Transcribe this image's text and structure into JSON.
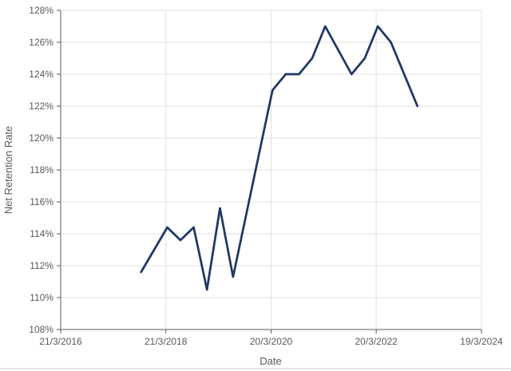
{
  "chart_data": {
    "type": "line",
    "title": "",
    "xlabel": "Date",
    "ylabel": "Net Retention Rate",
    "ylim": [
      108,
      128
    ],
    "xlim_years": [
      2016.221,
      2024.216
    ],
    "grid": true,
    "legend": "none",
    "y_ticks": [
      {
        "value": 108,
        "label": "108%"
      },
      {
        "value": 110,
        "label": "110%"
      },
      {
        "value": 112,
        "label": "112%"
      },
      {
        "value": 114,
        "label": "114%"
      },
      {
        "value": 116,
        "label": "116%"
      },
      {
        "value": 118,
        "label": "118%"
      },
      {
        "value": 120,
        "label": "120%"
      },
      {
        "value": 122,
        "label": "122%"
      },
      {
        "value": 124,
        "label": "124%"
      },
      {
        "value": 126,
        "label": "126%"
      },
      {
        "value": 128,
        "label": "128%"
      }
    ],
    "x_ticks": [
      {
        "x_year": 2016.221,
        "label": "21/3/2016"
      },
      {
        "x_year": 2018.219,
        "label": "21/3/2018"
      },
      {
        "x_year": 2020.219,
        "label": "20/3/2020"
      },
      {
        "x_year": 2022.216,
        "label": "20/3/2022"
      },
      {
        "x_year": 2024.216,
        "label": "19/3/2024"
      }
    ],
    "series": [
      {
        "name": "Net Retention Rate",
        "color": "#1f3864",
        "stroke_width": 2.75,
        "points": [
          {
            "date": "30/9/2017",
            "x_year": 2017.748,
            "value": 111.6
          },
          {
            "date": "31/3/2018",
            "x_year": 2018.247,
            "value": 114.4
          },
          {
            "date": "30/6/2018",
            "x_year": 2018.496,
            "value": 113.6
          },
          {
            "date": "30/9/2018",
            "x_year": 2018.748,
            "value": 114.4
          },
          {
            "date": "31/12/2018",
            "x_year": 2019.0,
            "value": 110.5
          },
          {
            "date": "31/3/2019",
            "x_year": 2019.247,
            "value": 115.6
          },
          {
            "date": "30/6/2019",
            "x_year": 2019.496,
            "value": 111.3
          },
          {
            "date": "31/3/2020",
            "x_year": 2020.246,
            "value": 123
          },
          {
            "date": "30/6/2020",
            "x_year": 2020.497,
            "value": 124
          },
          {
            "date": "30/9/2020",
            "x_year": 2020.749,
            "value": 124
          },
          {
            "date": "31/12/2020",
            "x_year": 2021.0,
            "value": 125
          },
          {
            "date": "31/3/2021",
            "x_year": 2021.247,
            "value": 127
          },
          {
            "date": "30/9/2021",
            "x_year": 2021.748,
            "value": 124
          },
          {
            "date": "31/12/2021",
            "x_year": 2022.0,
            "value": 125
          },
          {
            "date": "31/3/2022",
            "x_year": 2022.247,
            "value": 127
          },
          {
            "date": "30/6/2022",
            "x_year": 2022.496,
            "value": 126
          },
          {
            "date": "31/12/2022",
            "x_year": 2023.0,
            "value": 122
          }
        ]
      }
    ],
    "colors": {
      "line": "#1f3864",
      "axis": "#595959",
      "gridline": "#e2e2e2",
      "tick_text": "#595959"
    }
  }
}
